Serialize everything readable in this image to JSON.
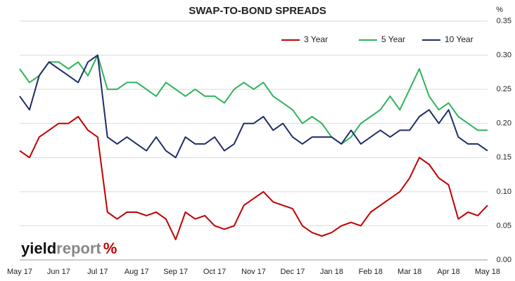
{
  "chart_data": {
    "type": "line",
    "title": "SWAP-TO-BOND SPREADS",
    "y_label": "%",
    "categories": [
      "May 17",
      null,
      null,
      null,
      "Jun 17",
      null,
      null,
      null,
      "Jul 17",
      null,
      null,
      null,
      "Aug 17",
      null,
      null,
      null,
      "Sep 17",
      null,
      null,
      null,
      "Oct 17",
      null,
      null,
      null,
      "Nov 17",
      null,
      null,
      null,
      "Dec 17",
      null,
      null,
      null,
      "Jan 18",
      null,
      null,
      null,
      "Feb 18",
      null,
      null,
      null,
      "Mar 18",
      null,
      null,
      null,
      "Apr 18",
      null,
      null,
      null,
      "May 18"
    ],
    "series": [
      {
        "name": "3 Year",
        "color": "#c00000",
        "values": [
          0.16,
          0.15,
          0.18,
          0.19,
          0.2,
          0.2,
          0.21,
          0.19,
          0.18,
          0.07,
          0.06,
          0.07,
          0.07,
          0.065,
          0.07,
          0.06,
          0.03,
          0.07,
          0.06,
          0.065,
          0.05,
          0.045,
          0.05,
          0.08,
          0.09,
          0.1,
          0.085,
          0.08,
          0.075,
          0.05,
          0.04,
          0.035,
          0.04,
          0.05,
          0.055,
          0.05,
          0.07,
          0.08,
          0.09,
          0.1,
          0.12,
          0.15,
          0.14,
          0.12,
          0.11,
          0.06,
          0.07,
          0.065,
          0.08
        ]
      },
      {
        "name": "5 Year",
        "color": "#2eb35a",
        "values": [
          0.28,
          0.26,
          0.27,
          0.29,
          0.29,
          0.28,
          0.29,
          0.27,
          0.3,
          0.25,
          0.25,
          0.26,
          0.26,
          0.25,
          0.24,
          0.26,
          0.25,
          0.24,
          0.25,
          0.24,
          0.24,
          0.23,
          0.25,
          0.26,
          0.25,
          0.26,
          0.24,
          0.23,
          0.22,
          0.2,
          0.21,
          0.2,
          0.18,
          0.17,
          0.18,
          0.2,
          0.21,
          0.22,
          0.24,
          0.22,
          0.25,
          0.28,
          0.24,
          0.22,
          0.23,
          0.21,
          0.2,
          0.19,
          0.19
        ]
      },
      {
        "name": "10 Year",
        "color": "#1f2d6b",
        "values": [
          0.24,
          0.22,
          0.27,
          0.29,
          0.28,
          0.27,
          0.26,
          0.29,
          0.3,
          0.18,
          0.17,
          0.18,
          0.17,
          0.16,
          0.18,
          0.16,
          0.15,
          0.18,
          0.17,
          0.17,
          0.18,
          0.16,
          0.17,
          0.2,
          0.2,
          0.21,
          0.19,
          0.2,
          0.18,
          0.17,
          0.18,
          0.18,
          0.18,
          0.17,
          0.19,
          0.17,
          0.18,
          0.19,
          0.18,
          0.19,
          0.19,
          0.21,
          0.22,
          0.2,
          0.22,
          0.18,
          0.17,
          0.17,
          0.16
        ]
      }
    ],
    "ylim": [
      0,
      0.35
    ],
    "yticks": [
      {
        "value": 0,
        "label": "0.00"
      },
      0.05,
      {
        "value": 0.1,
        "label": "0.10"
      },
      0.15,
      {
        "value": 0.2,
        "label": "0.20"
      },
      0.25,
      {
        "value": 0.3,
        "label": "0.30"
      },
      0.35
    ],
    "grid": true,
    "legend": "top-right",
    "logo": [
      "yield",
      "report",
      "%"
    ]
  }
}
